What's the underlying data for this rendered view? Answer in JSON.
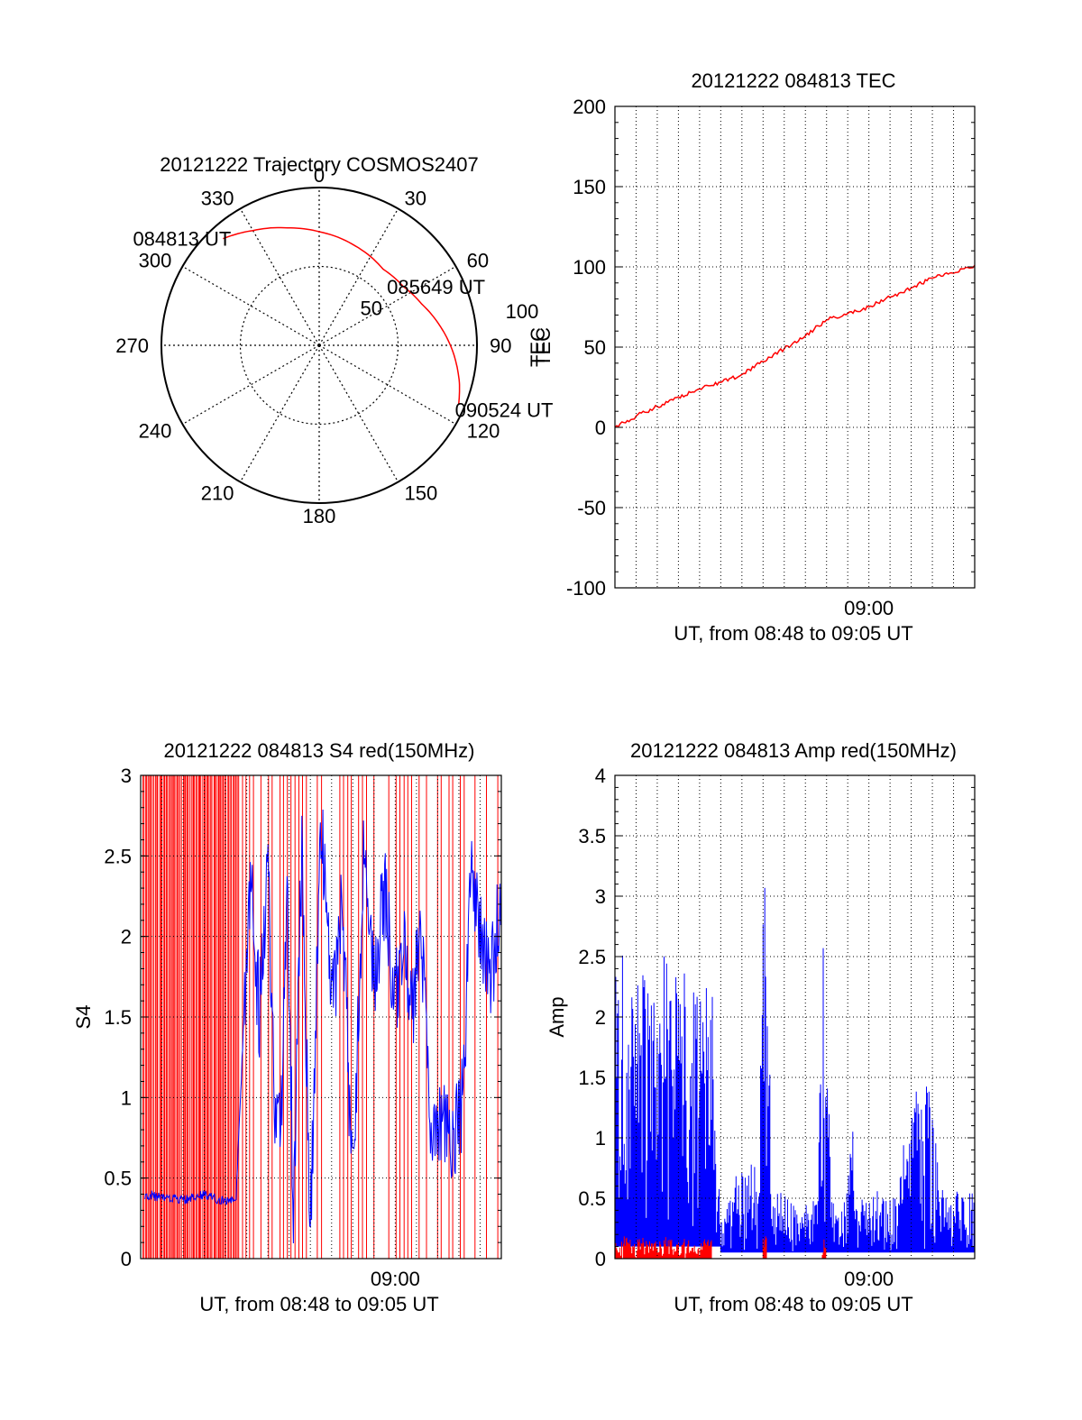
{
  "chart_data": [
    {
      "id": "trajectory",
      "type": "polar",
      "title": "20121222 Trajectory COSMOS2407",
      "azimuth_labels": [
        "0",
        "30",
        "60",
        "90",
        "120",
        "150",
        "180",
        "210",
        "240",
        "270",
        "300",
        "330"
      ],
      "elevation_ring_labels": [
        "50",
        "100"
      ],
      "elevation_rings": [
        0,
        50
      ],
      "elevation_max": 100,
      "radial_axis_label": "TEC",
      "track_color": "#ff0000",
      "track": [
        {
          "az": 318,
          "el": 91
        },
        {
          "az": 330,
          "el": 84
        },
        {
          "az": 345,
          "el": 77
        },
        {
          "az": 0,
          "el": 72
        },
        {
          "az": 20,
          "el": 67
        },
        {
          "az": 40,
          "el": 63
        },
        {
          "az": 55,
          "el": 65
        },
        {
          "az": 68,
          "el": 70
        },
        {
          "az": 80,
          "el": 77
        },
        {
          "az": 93,
          "el": 85
        },
        {
          "az": 105,
          "el": 92
        },
        {
          "az": 113,
          "el": 96
        }
      ],
      "annotations": [
        {
          "text": "084813 UT",
          "az": 318,
          "el": 91
        },
        {
          "text": "085649 UT",
          "az": 55,
          "el": 65
        },
        {
          "text": "090524 UT",
          "az": 113,
          "el": 96
        }
      ]
    },
    {
      "id": "tec",
      "type": "line",
      "title": "20121222 084813 TEC",
      "xlabel": "UT, from 08:48 to 09:05 UT",
      "ylabel": "TEC",
      "xlim_minutes_after_0848": [
        0,
        17
      ],
      "ylim": [
        -100,
        200
      ],
      "yticks": [
        -100,
        -50,
        0,
        50,
        100,
        150,
        200
      ],
      "xtick_labels": [
        {
          "label": "09:00",
          "t": 12
        }
      ],
      "grid": true,
      "series": [
        {
          "color": "#ff0000",
          "t": [
            0,
            1,
            2,
            3,
            4,
            5,
            6,
            7,
            8,
            9,
            10,
            11,
            12,
            13,
            14,
            15,
            16,
            17
          ],
          "values": [
            0,
            7,
            13,
            19,
            24,
            28,
            33,
            41,
            49,
            57,
            67,
            71,
            75,
            81,
            87,
            93,
            96,
            101
          ]
        }
      ]
    },
    {
      "id": "s4",
      "type": "line",
      "title": "20121222 084813 S4 red(150MHz)",
      "xlabel": "UT, from 08:48 to 09:05 UT",
      "ylabel": "S4",
      "xlim_minutes_after_0848": [
        0,
        17
      ],
      "ylim": [
        0,
        3
      ],
      "yticks": [
        0,
        0.5,
        1,
        1.5,
        2,
        2.5,
        3
      ],
      "xtick_labels": [
        {
          "label": "09:00",
          "t": 12
        }
      ],
      "grid": true,
      "series": [
        {
          "color": "#ff0000",
          "t": [
            0,
            0.3,
            0.6,
            1,
            1.4,
            1.8,
            2.2,
            2.6,
            3,
            3.4,
            3.8,
            4.2,
            4.6,
            5,
            5.4,
            6,
            6.8,
            7.4,
            8,
            8.6,
            9.2,
            10,
            10.8,
            11.6,
            12.4,
            13.2,
            14,
            14.6,
            15.2,
            16,
            16.6
          ],
          "values": [
            3,
            0,
            3,
            0,
            3,
            0,
            3,
            0,
            3,
            0,
            3,
            0,
            3,
            0,
            3,
            3,
            0,
            3,
            0,
            3,
            0,
            3,
            0,
            3,
            0,
            3,
            0,
            3,
            0,
            3,
            0
          ]
        },
        {
          "color": "#0000ff",
          "t": [
            0.2,
            1,
            2,
            3,
            4,
            4.5,
            4.9,
            5.2,
            5.6,
            6,
            6.3,
            6.6,
            6.9,
            7.2,
            7.6,
            8,
            8.5,
            9,
            9.5,
            10,
            10.5,
            11,
            11.5,
            12,
            12.4,
            12.8,
            13.2,
            13.6,
            14,
            14.4,
            14.8,
            15.2,
            15.6,
            16,
            16.5,
            17
          ],
          "values": [
            0.4,
            0.38,
            0.36,
            0.4,
            0.35,
            0.38,
            1.6,
            2.3,
            1.5,
            2.5,
            1.0,
            0.7,
            2.4,
            0.3,
            2.6,
            0.2,
            2.7,
            1.5,
            2.2,
            0.4,
            2.5,
            1.7,
            2.3,
            1.6,
            2.0,
            1.5,
            2.1,
            0.9,
            0.8,
            0.85,
            0.75,
            1.0,
            2.5,
            2.0,
            1.7,
            2.3
          ]
        }
      ]
    },
    {
      "id": "amp",
      "type": "line",
      "title": "20121222 084813 Amp red(150MHz)",
      "xlabel": "UT, from 08:48 to 09:05 UT",
      "ylabel": "Amp",
      "xlim_minutes_after_0848": [
        0,
        17
      ],
      "ylim": [
        0,
        4
      ],
      "yticks": [
        0,
        0.5,
        1,
        1.5,
        2,
        2.5,
        3,
        3.5,
        4
      ],
      "xtick_labels": [
        {
          "label": "09:00",
          "t": 12
        }
      ],
      "grid": true,
      "series": [
        {
          "color": "#0000ff",
          "name": "",
          "t": [
            0,
            0.4,
            0.8,
            1.2,
            1.6,
            2,
            2.4,
            2.8,
            3.2,
            3.6,
            4,
            4.4,
            4.6,
            5,
            5.6,
            6,
            6.4,
            6.8,
            7,
            7.2,
            7.4,
            7.8,
            8.2,
            8.6,
            9,
            9.6,
            9.8,
            10,
            10.2,
            10.6,
            11,
            11.2,
            11.4,
            11.8,
            12.4,
            13,
            13.4,
            13.8,
            14.2,
            14.6,
            15,
            15.4,
            15.8,
            16.2,
            16.6,
            17
          ],
          "envelope_max": [
            2.3,
            2.7,
            2.2,
            2.6,
            2.4,
            2.2,
            2.6,
            2.5,
            2.3,
            2.7,
            2.2,
            2.5,
            2.2,
            0.3,
            0.6,
            0.9,
            1.0,
            0.6,
            3.5,
            3.2,
            0.5,
            0.6,
            0.5,
            0.4,
            0.5,
            0.6,
            2.7,
            2.5,
            0.5,
            0.4,
            0.6,
            1.2,
            0.5,
            0.5,
            0.6,
            0.5,
            0.5,
            1.4,
            1.5,
            1.6,
            1.3,
            0.6,
            0.5,
            0.6,
            0.5,
            0.6
          ],
          "envelope_min": [
            0.1,
            0.1,
            0.1,
            0.1,
            0.1,
            0.1,
            0.1,
            0.1,
            0.1,
            0.1,
            0.1,
            0.1,
            0.1,
            0.05,
            0.05,
            0.05,
            0.05,
            0.05,
            0.05,
            0.05,
            0.05,
            0.05,
            0.05,
            0.05,
            0.05,
            0.05,
            0.05,
            0.05,
            0.05,
            0.05,
            0.05,
            0.05,
            0.05,
            0.05,
            0.05,
            0.05,
            0.05,
            0.05,
            0.05,
            0.05,
            0.05,
            0.05,
            0.05,
            0.05,
            0.05,
            0.05
          ]
        },
        {
          "color": "#ff0000",
          "name": "",
          "t": [
            0,
            0.4,
            0.8,
            1.2,
            1.6,
            2,
            2.4,
            2.8,
            3.2,
            3.6,
            4,
            4.4,
            4.6,
            7,
            7.2,
            9.8,
            10
          ],
          "envelope_max": [
            0.15,
            0.2,
            0.15,
            0.18,
            0.16,
            0.14,
            0.18,
            0.15,
            0.17,
            0.16,
            0.15,
            0.17,
            0.16,
            0.2,
            0.2,
            0.18,
            0.18
          ],
          "envelope_min": [
            0,
            0,
            0,
            0,
            0,
            0,
            0,
            0,
            0,
            0,
            0,
            0,
            0,
            0,
            0,
            0,
            0
          ]
        }
      ]
    }
  ]
}
